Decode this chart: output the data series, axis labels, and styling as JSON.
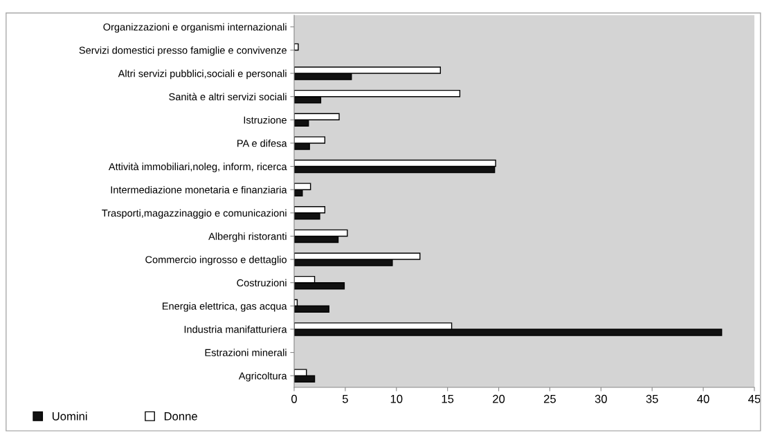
{
  "chart_data": {
    "type": "bar",
    "orientation": "horizontal",
    "categories": [
      "Organizzazioni e organismi internazionali",
      "Servizi domestici presso famiglie e convivenze",
      "Altri servizi pubblici,sociali e personali",
      "Sanità e altri servizi sociali",
      "Istruzione",
      "PA e difesa",
      "Attività immobiliari,noleg, inform, ricerca",
      "Intermediazione monetaria e finanziaria",
      "Trasporti,magazzinaggio e comunicazioni",
      "Alberghi ristoranti",
      "Commercio ingrosso e dettaglio",
      "Costruzioni",
      "Energia elettrica, gas acqua",
      "Industria manifatturiera",
      "Estrazioni minerali",
      "Agricoltura"
    ],
    "series": [
      {
        "name": "Uomini",
        "color": "#111111",
        "values": [
          0,
          0,
          5.6,
          2.6,
          1.4,
          1.5,
          19.6,
          0.8,
          2.5,
          4.3,
          9.6,
          4.9,
          3.4,
          41.8,
          0,
          2.0
        ]
      },
      {
        "name": "Donne",
        "color": "#ffffff",
        "values": [
          0,
          0.4,
          14.3,
          16.2,
          4.4,
          3.0,
          19.7,
          1.6,
          3.0,
          5.2,
          12.3,
          2.0,
          0.3,
          15.4,
          0,
          1.2
        ]
      }
    ],
    "xlim": [
      0,
      45
    ],
    "xticks": [
      0,
      5,
      10,
      15,
      20,
      25,
      30,
      35,
      40,
      45
    ],
    "grid": false,
    "legend": "bottom left"
  }
}
